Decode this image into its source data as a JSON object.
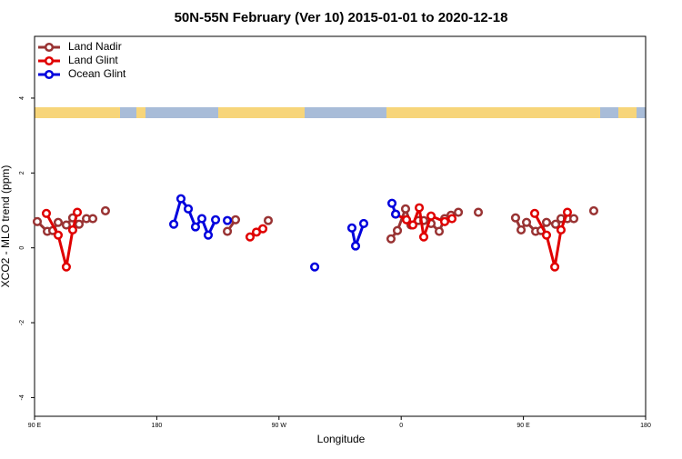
{
  "chart_data": {
    "type": "line",
    "title": "50N-55N February (Ver 10)   2015-01-01 to 2020-12-18",
    "xlabel": "Longitude",
    "ylabel": "XCO2 - MLO trend (ppm)",
    "xlim": [
      90,
      540
    ],
    "ylim": [
      -4.5,
      5.65
    ],
    "xticks": [
      {
        "value": 90,
        "label": "90 E"
      },
      180,
      {
        "value": 270,
        "label": "90 W"
      },
      {
        "value": 360,
        "label": "0"
      },
      {
        "value": 450,
        "label": "90 E"
      },
      {
        "value": 540,
        "label": "180"
      }
    ],
    "yticks": [
      -4,
      -2,
      0,
      2,
      4
    ],
    "grid": false,
    "legend": "top-left",
    "series": [
      {
        "name": "Land Nadir",
        "color": "#993333",
        "x": [
          92.0,
          99.4,
          103.4,
          107.4,
          113.4,
          118.1,
          122.8,
          128.2,
          132.9,
          null,
          142.2,
          null,
          232.0,
          238.0,
          null,
          262.1,
          null,
          352.5,
          357.2,
          363.2,
          367.2,
          372.6,
          376.6,
          382.0,
          388.0,
          392.0,
          396.7,
          402.1,
          null,
          416.8,
          null,
          444.2,
          448.3,
          452.3,
          459.0,
          463.0,
          467.0,
          473.7,
          477.7,
          482.4,
          487.1,
          null,
          501.8
        ],
        "values": [
          0.7,
          0.44,
          0.46,
          0.68,
          0.61,
          0.8,
          0.63,
          0.78,
          0.78,
          null,
          0.99,
          null,
          0.44,
          0.75,
          null,
          0.73,
          null,
          0.24,
          0.46,
          1.04,
          0.61,
          0.73,
          0.73,
          0.65,
          0.44,
          0.78,
          0.87,
          0.95,
          null,
          0.95,
          null,
          0.8,
          0.48,
          0.68,
          0.44,
          0.46,
          0.68,
          0.63,
          0.78,
          0.78,
          0.78,
          null,
          0.99
        ]
      },
      {
        "name": "Land Glint",
        "color": "#e00000",
        "x": [
          98.7,
          107.4,
          113.4,
          118.1,
          121.5,
          null,
          248.7,
          253.4,
          258.1,
          null,
          355.9,
          363.9,
          368.6,
          373.3,
          376.6,
          382.0,
          392.0,
          397.4,
          null,
          458.3,
          467.0,
          473.1,
          477.7,
          482.4
        ],
        "values": [
          0.92,
          0.34,
          -0.51,
          0.48,
          0.95,
          null,
          0.29,
          0.42,
          0.51,
          null,
          0.9,
          0.75,
          0.61,
          1.07,
          0.29,
          0.85,
          0.7,
          0.78,
          null,
          0.92,
          0.34,
          -0.51,
          0.48,
          0.95
        ]
      },
      {
        "name": "Ocean Glint",
        "color": "#0000dd",
        "x": [
          192.5,
          197.8,
          203.2,
          208.5,
          213.2,
          217.9,
          223.3,
          null,
          232.0,
          null,
          296.3,
          null,
          323.7,
          326.4,
          332.4,
          null,
          353.2,
          355.9
        ],
        "values": [
          0.63,
          1.31,
          1.04,
          0.56,
          0.78,
          0.34,
          0.75,
          null,
          0.73,
          null,
          -0.51,
          null,
          0.53,
          0.05,
          0.65,
          null,
          1.19,
          0.9
        ]
      }
    ]
  }
}
